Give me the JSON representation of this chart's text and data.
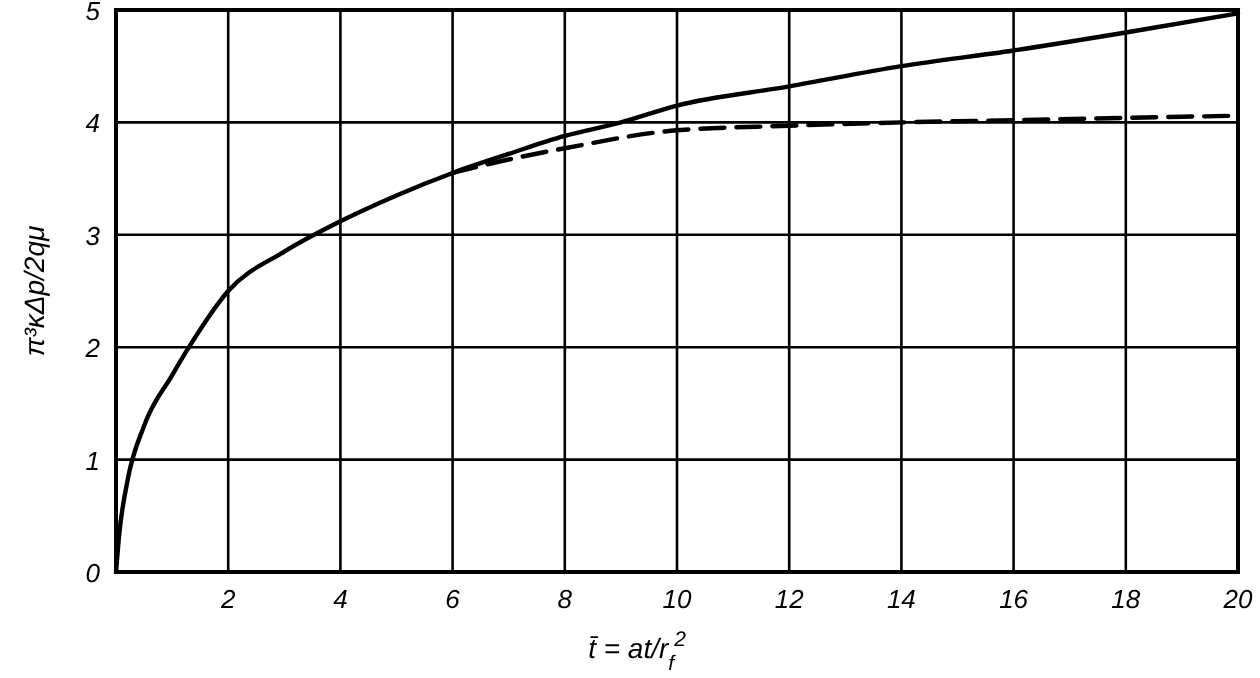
{
  "chart_data": {
    "type": "line",
    "xlabel": "t̄ = at/r$_{f}$$^{2}$",
    "ylabel": "π³κΔp/2qμ",
    "xlim": [
      0,
      20
    ],
    "ylim": [
      0,
      5
    ],
    "xticks": [
      2,
      4,
      6,
      8,
      10,
      12,
      14,
      16,
      18,
      20
    ],
    "yticks": [
      0,
      1,
      2,
      3,
      4,
      5
    ],
    "grid": true,
    "series": [
      {
        "color": "#000000",
        "line_style": "solid",
        "x": [
          0,
          0.05,
          0.2,
          0.5,
          1,
          1.3,
          2,
          3,
          4,
          5,
          6,
          7,
          8,
          9,
          10,
          12,
          14,
          16,
          18,
          20
        ],
        "values": [
          0,
          0.3,
          0.8,
          1.3,
          1.75,
          2.0,
          2.5,
          2.85,
          3.12,
          3.35,
          3.55,
          3.72,
          3.88,
          4.0,
          4.15,
          4.32,
          4.5,
          4.64,
          4.8,
          4.97
        ]
      },
      {
        "color": "#000000",
        "line_style": "dashed",
        "x": [
          6,
          7,
          8,
          10,
          12,
          14,
          16,
          18,
          20
        ],
        "values": [
          3.55,
          3.67,
          3.77,
          3.93,
          3.97,
          4.0,
          4.02,
          4.04,
          4.06
        ]
      }
    ]
  }
}
